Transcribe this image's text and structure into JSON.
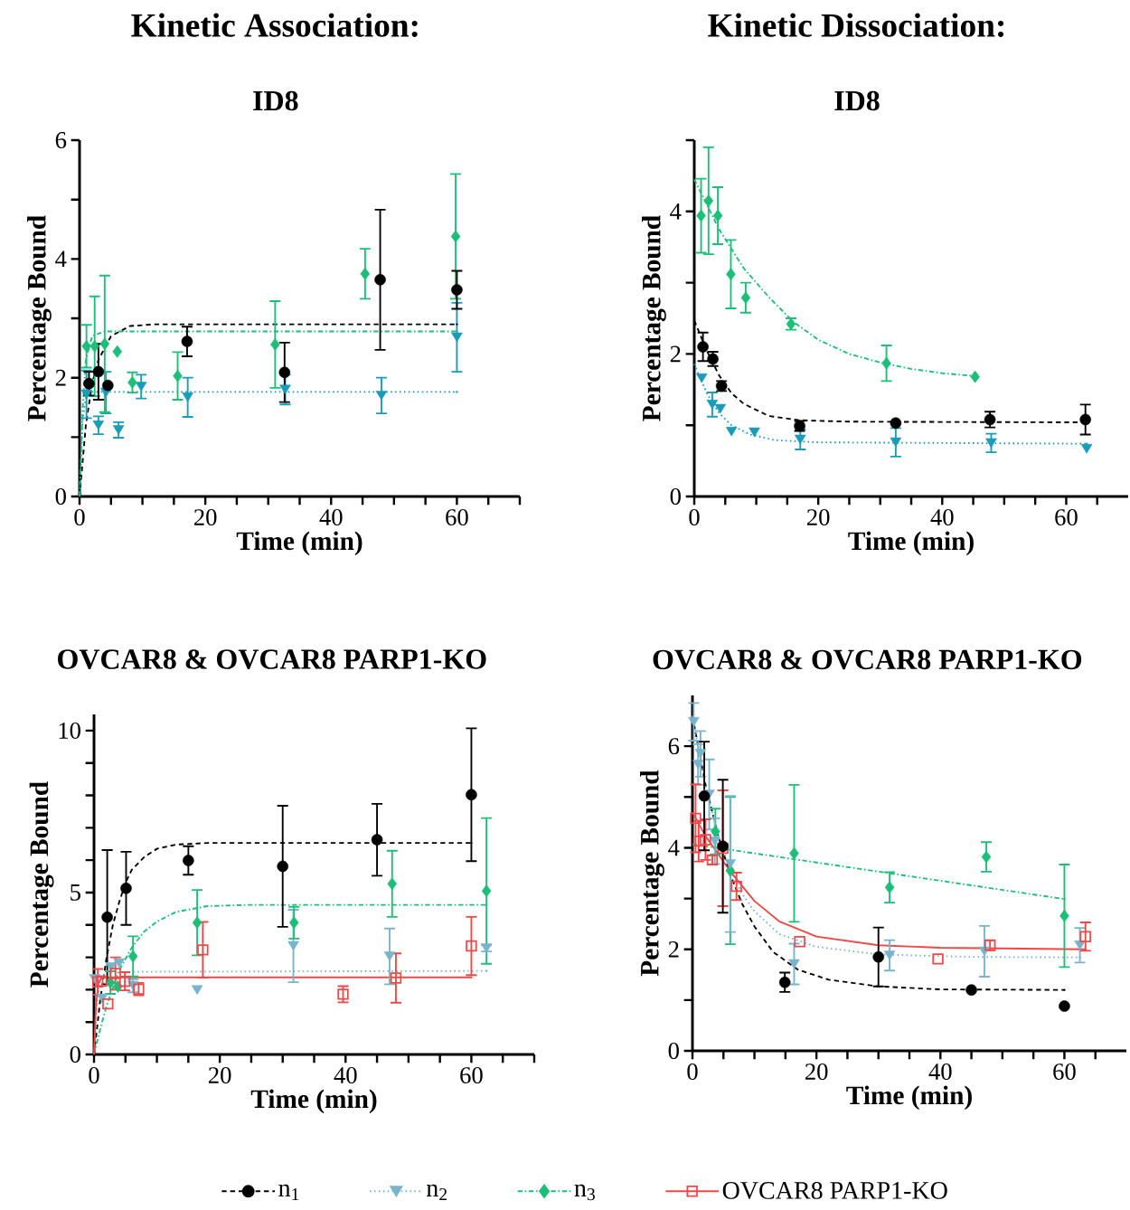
{
  "chart_data": [
    {
      "type": "scatter",
      "title": "Kinetic Association:",
      "subtitle": "ID8",
      "xlabel": "Time (min)",
      "ylabel": "Percentage Bound",
      "xlim": [
        0,
        70
      ],
      "ylim": [
        0,
        6
      ],
      "xticks": [
        0,
        {
          "value": 5,
          "label": null
        },
        {
          "value": 10,
          "label": null
        },
        {
          "value": 15,
          "label": null
        },
        20,
        {
          "value": 25,
          "label": null
        },
        {
          "value": 30,
          "label": null
        },
        {
          "value": 35,
          "label": null
        },
        40,
        {
          "value": 45,
          "label": null
        },
        {
          "value": 50,
          "label": null
        },
        {
          "value": 55,
          "label": null
        },
        60,
        {
          "value": 65,
          "label": null
        },
        {
          "value": 70,
          "label": null
        }
      ],
      "yticks": [
        0,
        {
          "value": 1,
          "label": null
        },
        2,
        {
          "value": 3,
          "label": null
        },
        4,
        {
          "value": 5,
          "label": null
        },
        6
      ],
      "series": [
        {
          "type": "line",
          "color": "#000000",
          "line_style": "dashed",
          "x": [
            0,
            1,
            2,
            3,
            5,
            8,
            12,
            60
          ],
          "values": [
            0,
            1.2,
            1.9,
            2.3,
            2.7,
            2.87,
            2.9,
            2.9
          ]
        },
        {
          "type": "line",
          "color": "#1a9bb8",
          "line_style": "dotted",
          "x": [
            0,
            0.5,
            1,
            2,
            60
          ],
          "values": [
            0,
            1.3,
            1.65,
            1.76,
            1.76
          ]
        },
        {
          "type": "line",
          "color": "#1dbf78",
          "line_style": "dashdot",
          "x": [
            0,
            0.5,
            1,
            2,
            4,
            60
          ],
          "values": [
            0,
            1.5,
            2.3,
            2.7,
            2.78,
            2.78
          ]
        },
        {
          "color": "#1a9bb8",
          "marker": "triangle",
          "x": [
            1.1,
            3,
            4.2,
            6.2,
            9.8,
            17.2,
            32.7,
            48,
            60
          ],
          "values": [
            1.72,
            1.2,
            1.75,
            1.12,
            1.85,
            1.67,
            1.8,
            1.7,
            2.68
          ],
          "errors": [
            0.4,
            0.15,
            0.35,
            0.13,
            0.2,
            0.33,
            0.25,
            0.3,
            0.58
          ]
        },
        {
          "color": "#1dbf78",
          "marker": "diamond",
          "x": [
            1.1,
            2.4,
            4,
            6,
            8.4,
            15.6,
            31.1,
            45.4,
            59.8
          ],
          "values": [
            2.53,
            2.53,
            2.57,
            2.44,
            1.92,
            2.03,
            2.56,
            3.75,
            4.38
          ],
          "errors": [
            0.36,
            0.84,
            1.15,
            null,
            0.17,
            0.4,
            0.73,
            0.42,
            1.05
          ]
        },
        {
          "color": "#000000",
          "marker": "circle",
          "x": [
            1.5,
            3,
            4.5,
            17.1,
            32.6,
            47.8,
            60
          ],
          "values": [
            1.9,
            2.1,
            1.87,
            2.61,
            2.09,
            3.65,
            3.48
          ],
          "errors": [
            0.2,
            0.47,
            null,
            0.25,
            0.5,
            1.18,
            0.32
          ]
        }
      ]
    },
    {
      "type": "scatter",
      "title": "Kinetic Dissociation:",
      "subtitle": "ID8",
      "xlabel": "Time (min)",
      "ylabel": "Percentage Bound",
      "xlim": [
        0,
        70
      ],
      "ylim": [
        0,
        5
      ],
      "xticks": [
        0,
        {
          "value": 5,
          "label": null
        },
        {
          "value": 10,
          "label": null
        },
        {
          "value": 15,
          "label": null
        },
        20,
        {
          "value": 25,
          "label": null
        },
        {
          "value": 30,
          "label": null
        },
        {
          "value": 35,
          "label": null
        },
        40,
        {
          "value": 45,
          "label": null
        },
        {
          "value": 50,
          "label": null
        },
        {
          "value": 55,
          "label": null
        },
        60,
        {
          "value": 65,
          "label": null
        }
      ],
      "yticks": [
        0,
        {
          "value": 1,
          "label": null
        },
        2,
        {
          "value": 3,
          "label": null
        },
        4,
        {
          "value": 5,
          "label": null
        }
      ],
      "series": [
        {
          "type": "line",
          "color": "#000000",
          "line_style": "dashed",
          "x": [
            0,
            2,
            4,
            6,
            8,
            12,
            17,
            25,
            63.3
          ],
          "values": [
            2.47,
            2.05,
            1.7,
            1.45,
            1.3,
            1.13,
            1.07,
            1.05,
            1.04
          ]
        },
        {
          "type": "line",
          "color": "#1a9bb8",
          "line_style": "dotted",
          "x": [
            0,
            2,
            4,
            6,
            9,
            13,
            20,
            63.3
          ],
          "values": [
            1.86,
            1.45,
            1.17,
            1.0,
            0.87,
            0.79,
            0.76,
            0.74
          ]
        },
        {
          "type": "line",
          "color": "#1dbf78",
          "line_style": "dashdot",
          "x": [
            0,
            4,
            8,
            12,
            16,
            20,
            25,
            30,
            35,
            40,
            45.3
          ],
          "values": [
            4.45,
            3.75,
            3.2,
            2.8,
            2.45,
            2.2,
            2.0,
            1.88,
            1.79,
            1.73,
            1.69
          ]
        },
        {
          "color": "#1a9bb8",
          "marker": "triangle",
          "x": [
            1.2,
            2.9,
            4.2,
            6,
            9.7,
            17.1,
            32.5,
            47.9,
            63.3
          ],
          "values": [
            1.66,
            1.29,
            1.23,
            0.91,
            0.9,
            0.8,
            0.76,
            0.75,
            0.67
          ],
          "errors": [
            null,
            0.17,
            null,
            null,
            null,
            0.14,
            0.2,
            0.13,
            null
          ]
        },
        {
          "color": "#1dbf78",
          "marker": "diamond",
          "x": [
            1.1,
            2.3,
            3.8,
            5.9,
            8.3,
            15.6,
            31,
            45.3
          ],
          "values": [
            3.94,
            4.15,
            3.94,
            3.12,
            2.79,
            2.42,
            1.87,
            1.68
          ],
          "errors": [
            0.52,
            0.75,
            0.4,
            0.48,
            0.21,
            0.08,
            0.25,
            null
          ]
        },
        {
          "color": "#000000",
          "marker": "circle",
          "x": [
            1.4,
            3,
            4.4,
            17,
            32.5,
            47.7,
            63.1
          ],
          "values": [
            2.1,
            1.93,
            1.55,
            0.99,
            1.03,
            1.08,
            1.08
          ],
          "errors": [
            0.2,
            0.1,
            0.07,
            0.07,
            null,
            0.11,
            0.21
          ]
        }
      ]
    },
    {
      "type": "scatter",
      "title": "OVCAR8 & OVCAR8 PARP1-KO",
      "xlabel": "Time (min)",
      "ylabel": "Percentage Bound",
      "xlim": [
        0,
        70
      ],
      "ylim": [
        0,
        10.5
      ],
      "legend": "bottom",
      "xticks": [
        0,
        {
          "value": 5,
          "label": null
        },
        {
          "value": 10,
          "label": null
        },
        {
          "value": 15,
          "label": null
        },
        20,
        {
          "value": 25,
          "label": null
        },
        {
          "value": 30,
          "label": null
        },
        {
          "value": 35,
          "label": null
        },
        40,
        {
          "value": 45,
          "label": null
        },
        {
          "value": 50,
          "label": null
        },
        {
          "value": 55,
          "label": null
        },
        60,
        {
          "value": 65,
          "label": null
        },
        {
          "value": 70,
          "label": null
        }
      ],
      "yticks": [
        0,
        {
          "value": 1,
          "label": null
        },
        {
          "value": 2,
          "label": null
        },
        {
          "value": 3,
          "label": null
        },
        {
          "value": 4,
          "label": null
        },
        5,
        {
          "value": 6,
          "label": null
        },
        {
          "value": 7,
          "label": null
        },
        {
          "value": 8,
          "label": null
        },
        {
          "value": 9,
          "label": null
        },
        10
      ],
      "series": [
        {
          "type": "line",
          "color": "#000000",
          "line_style": "dashed",
          "x": [
            0,
            1,
            2,
            3,
            4,
            5,
            6,
            8,
            10,
            13,
            18,
            60
          ],
          "values": [
            0,
            1.7,
            3.0,
            4.0,
            4.7,
            5.3,
            5.7,
            6.1,
            6.35,
            6.48,
            6.53,
            6.53
          ]
        },
        {
          "type": "line",
          "color": "#7ab4cc",
          "line_style": "dotted",
          "x": [
            0,
            0.5,
            1,
            2,
            62.4
          ],
          "values": [
            0,
            1.6,
            2.3,
            2.55,
            2.58
          ]
        },
        {
          "type": "line",
          "color": "#1dbf78",
          "line_style": "dashdot",
          "x": [
            0,
            1,
            2,
            4,
            6,
            8,
            10,
            13,
            18,
            25,
            62.4
          ],
          "values": [
            0,
            0.8,
            1.5,
            2.6,
            3.3,
            3.8,
            4.1,
            4.4,
            4.58,
            4.62,
            4.62
          ]
        },
        {
          "type": "line",
          "color": "#f04848",
          "line_style": "solid",
          "x": [
            0,
            0.3,
            0.7,
            1.2,
            60
          ],
          "values": [
            0,
            1.5,
            2.2,
            2.38,
            2.38
          ]
        },
        {
          "name": "n$_{1}$",
          "color": "#000000",
          "marker": "circle",
          "line_style": "dashed",
          "x": [
            2.1,
            5.1,
            15,
            30,
            45,
            60
          ],
          "values": [
            4.24,
            5.13,
            5.99,
            5.81,
            6.63,
            8.02
          ],
          "errors": [
            2.07,
            1.13,
            0.44,
            1.87,
            1.11,
            2.05
          ]
        },
        {
          "name": "n$_{2}$",
          "color": "#7ab4cc",
          "marker": "triangle",
          "line_style": "dotted",
          "x": [
            0.1,
            1.3,
            2.7,
            4,
            6.2,
            16.4,
            31.7,
            47,
            62.4
          ],
          "values": [
            2.33,
            1.73,
            2.7,
            2.82,
            2.12,
            1.99,
            3.35,
            3.03,
            3.28
          ],
          "errors": [
            null,
            null,
            null,
            null,
            0.2,
            null,
            1.12,
            0.86,
            0.1
          ]
        },
        {
          "name": "n$_{3}$",
          "color": "#1dbf78",
          "marker": "diamond",
          "line_style": "dashdot",
          "x": [
            2.6,
            3.8,
            6.2,
            16.4,
            31.8,
            47.4,
            62.4
          ],
          "values": [
            2.22,
            2.1,
            3.03,
            4.07,
            4.07,
            5.27,
            5.05
          ],
          "errors": [
            0.35,
            null,
            0.62,
            1.01,
            0.49,
            1.02,
            2.25
          ]
        },
        {
          "name": "OVCAR8 PARP1-KO",
          "color": "#f04848",
          "marker": "square",
          "line_style": "solid",
          "x": [
            0.6,
            1.2,
            2.2,
            3.4,
            4.9,
            7.1,
            17.3,
            39.6,
            48,
            60
          ],
          "values": [
            2.24,
            2.27,
            1.56,
            2.5,
            2.26,
            2.02,
            3.23,
            1.86,
            2.36,
            3.35
          ],
          "errors": [
            0.4,
            null,
            null,
            0.5,
            0.28,
            0.19,
            0.86,
            0.25,
            0.76,
            0.9
          ]
        }
      ]
    },
    {
      "type": "scatter",
      "title": "OVCAR8 & OVCAR8 PARP1-KO",
      "xlabel": "Time (min)",
      "ylabel": "Percentage Bound",
      "xlim": [
        0,
        70
      ],
      "ylim": [
        0,
        7
      ],
      "xticks": [
        0,
        {
          "value": 5,
          "label": null
        },
        {
          "value": 10,
          "label": null
        },
        {
          "value": 15,
          "label": null
        },
        20,
        {
          "value": 25,
          "label": null
        },
        {
          "value": 30,
          "label": null
        },
        {
          "value": 35,
          "label": null
        },
        40,
        {
          "value": 45,
          "label": null
        },
        {
          "value": 50,
          "label": null
        },
        {
          "value": 55,
          "label": null
        },
        60,
        {
          "value": 65,
          "label": null
        }
      ],
      "yticks": [
        0,
        {
          "value": 1,
          "label": null
        },
        2,
        {
          "value": 3,
          "label": null
        },
        4,
        {
          "value": 5,
          "label": null
        },
        6
      ],
      "series": [
        {
          "type": "line",
          "color": "#000000",
          "line_style": "dashed",
          "x": [
            0,
            2,
            4,
            6,
            8,
            10,
            13,
            17,
            22,
            30,
            40,
            60
          ],
          "values": [
            6.6,
            5.3,
            4.3,
            3.5,
            2.9,
            2.45,
            1.95,
            1.6,
            1.4,
            1.27,
            1.21,
            1.2
          ]
        },
        {
          "type": "line",
          "color": "#7ab4cc",
          "line_style": "dotted",
          "x": [
            0,
            2,
            4,
            6,
            8,
            10,
            14,
            20,
            30,
            45,
            62.5
          ],
          "values": [
            6.6,
            5.3,
            4.3,
            3.6,
            3.1,
            2.75,
            2.3,
            2.05,
            1.9,
            1.85,
            1.84
          ]
        },
        {
          "type": "line",
          "color": "#1dbf78",
          "line_style": "dashdot",
          "x": [
            0,
            60
          ],
          "values": [
            4.07,
            2.99
          ]
        },
        {
          "type": "line",
          "color": "#f04848",
          "line_style": "solid",
          "x": [
            0,
            2,
            4,
            6,
            8,
            10,
            14,
            20,
            30,
            40,
            63.4
          ],
          "values": [
            4.7,
            4.25,
            3.9,
            3.55,
            3.25,
            2.95,
            2.55,
            2.25,
            2.08,
            2.03,
            2.0
          ]
        },
        {
          "color": "#1dbf78",
          "marker": "diamond",
          "x": [
            3.7,
            6.1,
            16.4,
            31.8,
            47.4,
            60
          ],
          "values": [
            4.32,
            3.55,
            3.89,
            3.22,
            3.82,
            2.66
          ],
          "errors": [
            0.45,
            1.45,
            1.35,
            0.3,
            0.29,
            1.01
          ]
        },
        {
          "color": "#7ab4cc",
          "marker": "triangle",
          "x": [
            0.2,
            0.9,
            1.3,
            2.7,
            3.6,
            6.1,
            16.4,
            31.8,
            47.1,
            62.5
          ],
          "values": [
            6.48,
            5.64,
            5.85,
            5.05,
            4.13,
            3.68,
            1.71,
            1.88,
            1.96,
            2.08
          ],
          "errors": [
            0.37,
            0.4,
            0.45,
            0.69,
            0.45,
            1.34,
            0.4,
            0.3,
            0.5,
            0.34
          ]
        },
        {
          "color": "#f04848",
          "marker": "square",
          "x": [
            0.5,
            1,
            2.1,
            3.2,
            4.9,
            7.1,
            17.3,
            39.6,
            48,
            63.4
          ],
          "values": [
            4.58,
            4.13,
            4.16,
            3.76,
            3.99,
            3.24,
            2.15,
            1.81,
            2.08,
            2.25
          ],
          "errors": [
            0.67,
            0.4,
            0.4,
            0.09,
            1.14,
            0.27,
            null,
            null,
            0.1,
            0.28
          ]
        },
        {
          "color": "#000000",
          "marker": "circle",
          "x": [
            1.9,
            4.9,
            14.9,
            30,
            45,
            60
          ],
          "values": [
            5.02,
            4.03,
            1.35,
            1.85,
            1.2,
            0.88
          ],
          "errors": [
            1.07,
            1.31,
            0.19,
            0.58,
            null,
            null
          ]
        }
      ]
    }
  ]
}
